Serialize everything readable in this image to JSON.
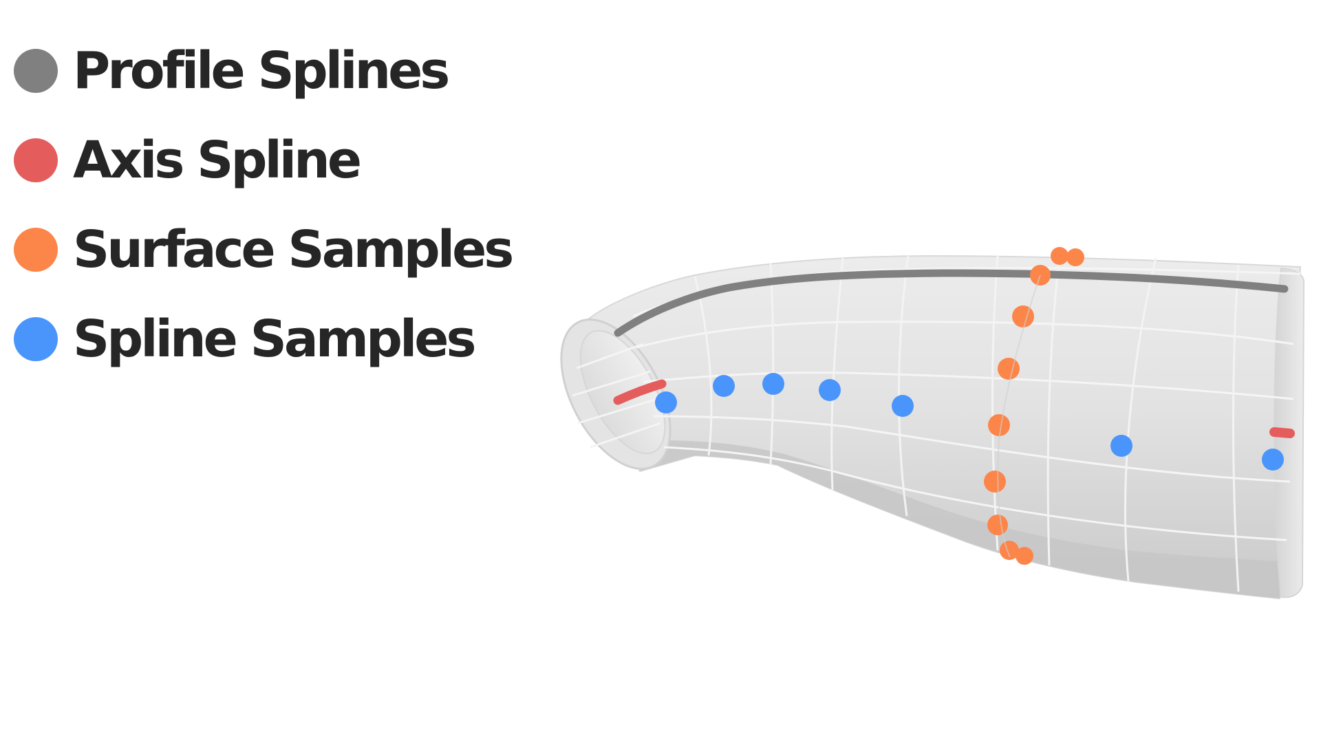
{
  "legend": {
    "items": [
      {
        "label": "Profile Splines",
        "color": "#808080"
      },
      {
        "label": "Axis Spline",
        "color": "#e55c5c"
      },
      {
        "label": "Surface Samples",
        "color": "#fc8549"
      },
      {
        "label": "Spline Samples",
        "color": "#4a95fc"
      }
    ]
  },
  "colors": {
    "surface_light": "#e6e6e6",
    "surface_mid": "#d7d7d7",
    "surface_dark": "#c8c8c8",
    "grid": "#f4f4f4",
    "profile": "#808080",
    "axis": "#e55c5c",
    "surface_samples": "#fc8549",
    "spline_samples": "#4a95fc"
  }
}
